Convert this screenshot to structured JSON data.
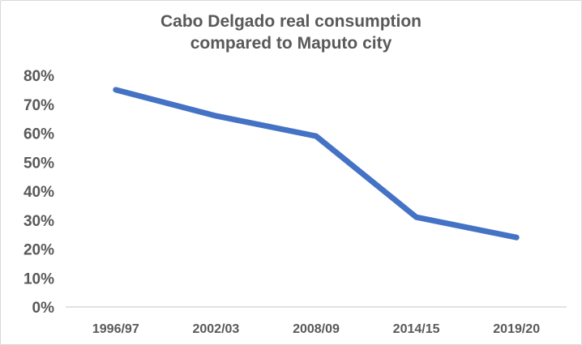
{
  "chart_data": {
    "type": "line",
    "title_lines": [
      "Cabo Delgado real consumption",
      "compared to Maputo city"
    ],
    "categories": [
      "1996/97",
      "2002/03",
      "2008/09",
      "2014/15",
      "2019/20"
    ],
    "series": [
      {
        "name": "Cabo Delgado real consumption compared to Maputo city",
        "values": [
          75,
          66,
          59,
          31,
          24
        ],
        "color": "#4472c4"
      }
    ],
    "yticks": [
      "0%",
      "10%",
      "20%",
      "30%",
      "40%",
      "50%",
      "60%",
      "70%",
      "80%"
    ],
    "ylim": [
      0,
      80
    ],
    "xlabel": "",
    "ylabel": "",
    "grid": false,
    "legend": "none",
    "axis_color": "#d9d9d9",
    "text_color": "#595959"
  }
}
